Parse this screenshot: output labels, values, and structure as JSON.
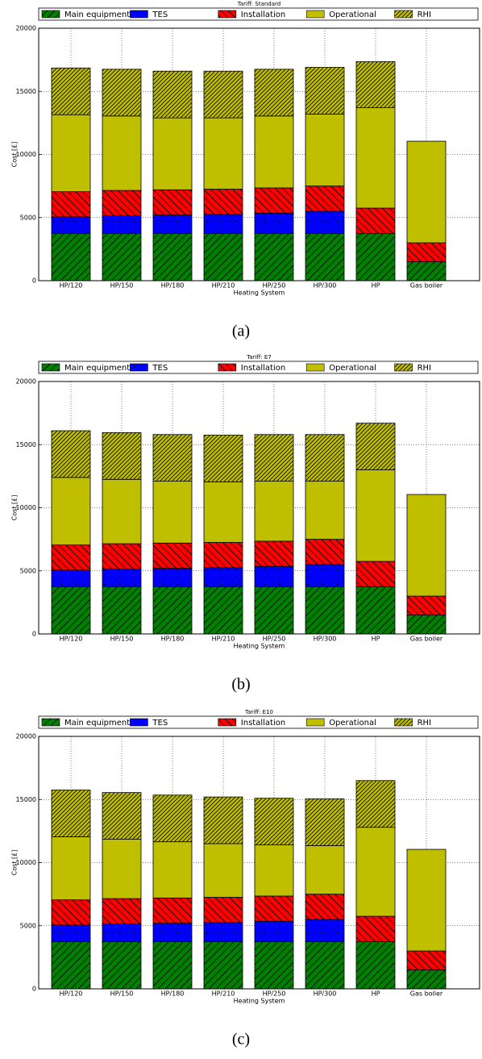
{
  "chart_data": [
    {
      "type": "bar",
      "stacked": true,
      "title": "Tariff: Standard",
      "caption": "(a)",
      "xlabel": "Heating System",
      "ylabel": "Cost [£]",
      "categories": [
        "HP/120",
        "HP/150",
        "HP/180",
        "HP/210",
        "HP/250",
        "HP/300",
        "HP",
        "Gas boiler"
      ],
      "series": [
        {
          "name": "Main equipment",
          "color": "#008000",
          "hatch": "//",
          "values": [
            3750,
            3750,
            3750,
            3750,
            3750,
            3750,
            3750,
            1500
          ]
        },
        {
          "name": "TES",
          "color": "#0000ff",
          "hatch": "..",
          "values": [
            1300,
            1400,
            1450,
            1500,
            1600,
            1750,
            0,
            0
          ]
        },
        {
          "name": "Installation",
          "color": "#ff0000",
          "hatch": "\\\\",
          "values": [
            2000,
            2000,
            2000,
            2000,
            2000,
            2000,
            2000,
            1500
          ]
        },
        {
          "name": "Operational",
          "color": "#bfbf00",
          "hatch": "",
          "values": [
            6100,
            5900,
            5700,
            5650,
            5700,
            5700,
            7950,
            8050
          ]
        },
        {
          "name": "RHI",
          "color": "#bfbf00",
          "hatch": "////",
          "values": [
            3700,
            3700,
            3700,
            3700,
            3700,
            3700,
            3650,
            0
          ]
        }
      ],
      "ylim": [
        0,
        20000
      ],
      "yticks": [
        0,
        5000,
        10000,
        15000,
        20000
      ],
      "grid": true,
      "legend": "top"
    },
    {
      "type": "bar",
      "stacked": true,
      "title": "Tariff: E7",
      "caption": "(b)",
      "xlabel": "Heating System",
      "ylabel": "Cost [£]",
      "categories": [
        "HP/120",
        "HP/150",
        "HP/180",
        "HP/210",
        "HP/250",
        "HP/300",
        "HP",
        "Gas boiler"
      ],
      "series": [
        {
          "name": "Main equipment",
          "color": "#008000",
          "hatch": "//",
          "values": [
            3750,
            3750,
            3750,
            3750,
            3750,
            3750,
            3750,
            1500
          ]
        },
        {
          "name": "TES",
          "color": "#0000ff",
          "hatch": "..",
          "values": [
            1300,
            1400,
            1450,
            1500,
            1600,
            1750,
            0,
            0
          ]
        },
        {
          "name": "Installation",
          "color": "#ff0000",
          "hatch": "\\\\",
          "values": [
            2000,
            2000,
            2000,
            2000,
            2000,
            2000,
            2000,
            1500
          ]
        },
        {
          "name": "Operational",
          "color": "#bfbf00",
          "hatch": "",
          "values": [
            5350,
            5100,
            4900,
            4800,
            4750,
            4600,
            7250,
            8050
          ]
        },
        {
          "name": "RHI",
          "color": "#bfbf00",
          "hatch": "////",
          "values": [
            3700,
            3700,
            3700,
            3700,
            3700,
            3700,
            3700,
            0
          ]
        }
      ],
      "ylim": [
        0,
        20000
      ],
      "yticks": [
        0,
        5000,
        10000,
        15000,
        20000
      ],
      "grid": true,
      "legend": "top"
    },
    {
      "type": "bar",
      "stacked": true,
      "title": "Tariff: E10",
      "caption": "(c)",
      "xlabel": "Heating System",
      "ylabel": "Cost [£]",
      "categories": [
        "HP/120",
        "HP/150",
        "HP/180",
        "HP/210",
        "HP/250",
        "HP/300",
        "HP",
        "Gas boiler"
      ],
      "series": [
        {
          "name": "Main equipment",
          "color": "#008000",
          "hatch": "//",
          "values": [
            3750,
            3750,
            3750,
            3750,
            3750,
            3750,
            3750,
            1500
          ]
        },
        {
          "name": "TES",
          "color": "#0000ff",
          "hatch": "..",
          "values": [
            1300,
            1400,
            1450,
            1500,
            1600,
            1750,
            0,
            0
          ]
        },
        {
          "name": "Installation",
          "color": "#ff0000",
          "hatch": "\\\\",
          "values": [
            2000,
            2000,
            2000,
            2000,
            2000,
            2000,
            2000,
            1500
          ]
        },
        {
          "name": "Operational",
          "color": "#bfbf00",
          "hatch": "",
          "values": [
            5000,
            4700,
            4450,
            4250,
            4050,
            3850,
            7050,
            8050
          ]
        },
        {
          "name": "RHI",
          "color": "#bfbf00",
          "hatch": "////",
          "values": [
            3700,
            3700,
            3700,
            3700,
            3700,
            3700,
            3700,
            0
          ]
        }
      ],
      "ylim": [
        0,
        20000
      ],
      "yticks": [
        0,
        5000,
        10000,
        15000,
        20000
      ],
      "grid": true,
      "legend": "top"
    }
  ]
}
